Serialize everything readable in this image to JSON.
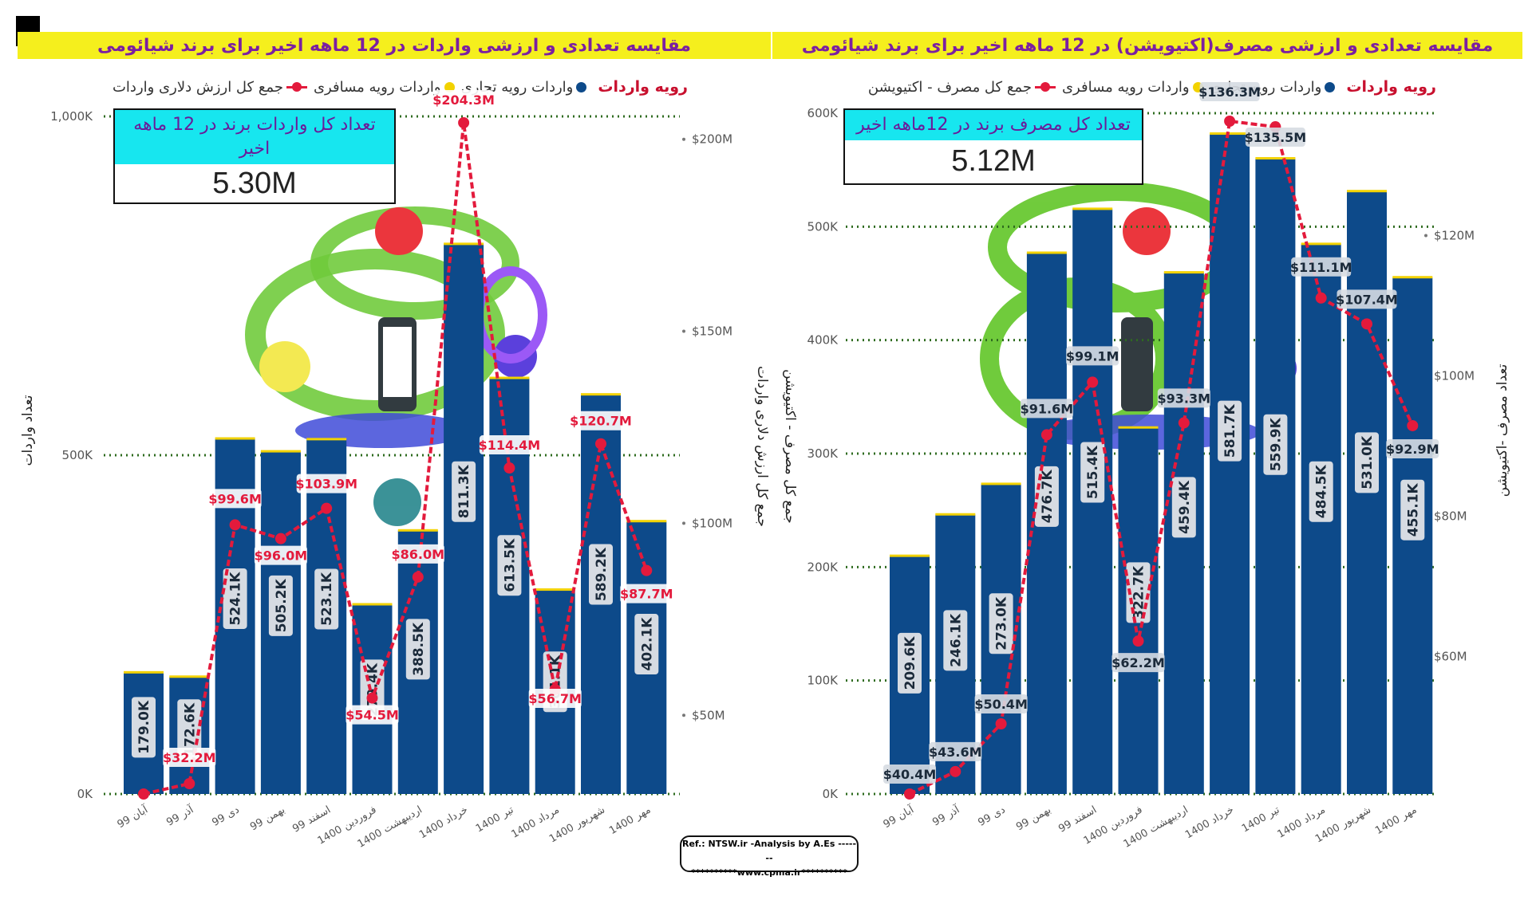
{
  "titles": {
    "left": "مقایسه تعدادی و ارزشی واردات در 12 ماهه اخیر برای برند شیائومی",
    "right": "مقایسه تعدادی و ارزشی مصرف(اکتیویشن) در 12 ماهه اخیر برای برند شیائومی"
  },
  "legend_left": {
    "title": "رویه واردات",
    "items": [
      "واردات رویه تجاری",
      "واردات رویه مسافری",
      "جمع کل ارزش دلاری واردات"
    ]
  },
  "legend_right": {
    "title": "رویه واردات",
    "items": [
      "واردات رویه تجاری",
      "واردات رویه مسافری",
      "جمع کل مصرف - اکتیویشن"
    ]
  },
  "kpi_left": {
    "label": "تعداد کل واردات برند در 12 ماهه اخیر",
    "value": "5.30M"
  },
  "kpi_right": {
    "label": "تعداد کل مصرف برند در 12ماهه اخیر",
    "value": "5.12M"
  },
  "footer": {
    "line1": "Ref.: NTSW.ir -Analysis by A.Es   -------",
    "line2": "**********www.cpma.ir**********"
  },
  "colors": {
    "bar": "#0d4a8a",
    "bar_top": "#f2d200",
    "line": "#e31a3c",
    "title_bg": "#f5ef1d",
    "title_text": "#7b1fa2",
    "kpi_head_bg": "#17e6ef",
    "grid": "#2e6b1f"
  },
  "chart_data": [
    {
      "type": "bar",
      "categories": [
        "آبان 99",
        "آذر 99",
        "دی 99",
        "بهمن 99",
        "اسفند 99",
        "فروردین 1400",
        "اردیبهشت 1400",
        "خرداد 1400",
        "تیر 1400",
        "مرداد 1400",
        "شهریور 1400",
        "مهر 1400"
      ],
      "series": [
        {
          "name": "واردات رویه تجاری",
          "type": "bar",
          "axis": "left",
          "values": [
            179000,
            172600,
            524100,
            505200,
            523100,
            279400,
            388500,
            811300,
            613500,
            301100,
            589200,
            402100
          ],
          "labels": [
            "179.0K",
            "172.6K",
            "524.1K",
            "505.2K",
            "523.1K",
            "279.4K",
            "388.5K",
            "811.3K",
            "613.5K",
            "301.1K",
            "589.2K",
            "402.1K"
          ]
        },
        {
          "name": "جمع کل ارزش دلاری واردات",
          "type": "line",
          "axis": "right",
          "values": [
            29.5,
            32.2,
            99.6,
            96.0,
            103.9,
            54.5,
            86.0,
            204.3,
            114.4,
            56.7,
            120.7,
            87.7
          ],
          "labels": [
            "",
            "$32.2M",
            "$99.6M",
            "$96.0M",
            "$103.9M",
            "$54.5M",
            "$86.0M",
            "$204.3M",
            "$114.4M",
            "$56.7M",
            "$120.7M",
            "$87.7M"
          ]
        }
      ],
      "ylabel": "تعداد واردات",
      "y2label": "جمع کل ارزش دلاری واردات",
      "ylim": [
        0,
        1000000
      ],
      "y_ticks": [
        {
          "v": 0,
          "t": "0K"
        },
        {
          "v": 500000,
          "t": "500K"
        },
        {
          "v": 1000000,
          "t": "1,000K"
        }
      ],
      "y2lim": [
        29.5,
        204.3
      ],
      "y2_ticks": [
        {
          "v": 50,
          "t": "$50M"
        },
        {
          "v": 100,
          "t": "$100M"
        },
        {
          "v": 150,
          "t": "$150M"
        },
        {
          "v": 200,
          "t": "$200M"
        }
      ],
      "grid": true
    },
    {
      "type": "bar",
      "categories": [
        "آبان 99",
        "آذر 99",
        "دی 99",
        "بهمن 99",
        "اسفند 99",
        "فروردین 1400",
        "اردیبهشت 1400",
        "خرداد 1400",
        "تیر 1400",
        "مرداد 1400",
        "شهریور 1400",
        "مهر 1400"
      ],
      "series": [
        {
          "name": "واردات رویه تجاری",
          "type": "bar",
          "axis": "left",
          "values": [
            209600,
            246100,
            273000,
            476700,
            515400,
            322700,
            459400,
            581700,
            559900,
            484500,
            531000,
            455100
          ],
          "labels": [
            "209.6K",
            "246.1K",
            "273.0K",
            "476.7K",
            "515.4K",
            "322.7K",
            "459.4K",
            "581.7K",
            "559.9K",
            "484.5K",
            "531.0K",
            "455.1K"
          ]
        },
        {
          "name": "جمع کل مصرف - اکتیویشن",
          "type": "line",
          "axis": "right",
          "values": [
            40.4,
            43.6,
            50.4,
            91.6,
            99.1,
            62.2,
            93.3,
            136.3,
            135.5,
            111.1,
            107.4,
            92.9
          ],
          "labels": [
            "$40.4M",
            "$43.6M",
            "$50.4M",
            "$91.6M",
            "$99.1M",
            "$62.2M",
            "$93.3M",
            "$136.3M",
            "$135.5M",
            "$111.1M",
            "$107.4M",
            "$92.9M"
          ]
        }
      ],
      "ylabel": "تعداد مصرف -اکتیویشن",
      "y2label": "جمع کل مصرف - اکتیویشن",
      "ylim": [
        0,
        600000
      ],
      "y_ticks": [
        {
          "v": 0,
          "t": "0K"
        },
        {
          "v": 100000,
          "t": "100K"
        },
        {
          "v": 200000,
          "t": "200K"
        },
        {
          "v": 300000,
          "t": "300K"
        },
        {
          "v": 400000,
          "t": "400K"
        },
        {
          "v": 500000,
          "t": "500K"
        },
        {
          "v": 600000,
          "t": "600K"
        }
      ],
      "y2lim": [
        40.4,
        136.3
      ],
      "y2_ticks": [
        {
          "v": 60,
          "t": "$60M"
        },
        {
          "v": 80,
          "t": "$80M"
        },
        {
          "v": 100,
          "t": "$100M"
        },
        {
          "v": 120,
          "t": "$120M"
        }
      ],
      "grid": true
    }
  ]
}
